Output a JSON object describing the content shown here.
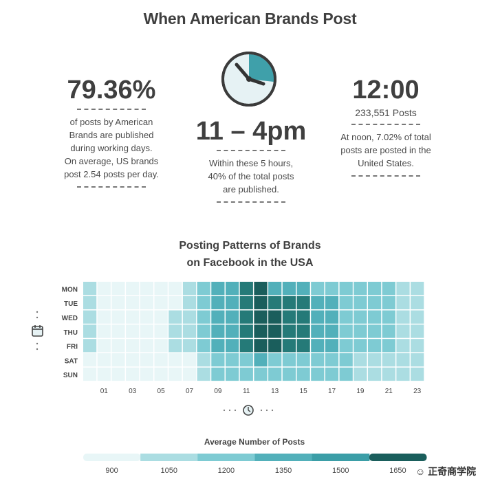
{
  "page": {
    "title": "When American Brands Post",
    "brand": "☺ 正奇商学院"
  },
  "stats": {
    "left": {
      "value": "79.36%",
      "lines": [
        "of posts by American",
        "Brands are published",
        "during working days.",
        "On average, US brands",
        "post 2.54 posts per day."
      ]
    },
    "middle": {
      "value": "11 – 4pm",
      "lines": [
        "Within these 5 hours,",
        "40% of the total posts",
        "are published."
      ]
    },
    "right": {
      "value": "12:00",
      "subtitle": "233,551 Posts",
      "lines": [
        "At noon, 7.02% of total",
        "posts are posted in the",
        "United States."
      ]
    }
  },
  "icons": {
    "clock": "clock-icon",
    "calendar": "calendar-icon",
    "small_clock": "small-clock-icon"
  },
  "colors": {
    "scale": [
      "#e8f6f7",
      "#abdde2",
      "#7ecbd3",
      "#52b0ba",
      "#3b9ea7",
      "#257a78",
      "#1a5e5c"
    ],
    "clock_face": "#e6f2f4",
    "clock_fill": "#3fa0aa"
  },
  "chart_data": {
    "type": "heatmap",
    "title_lines": [
      "Posting Patterns of Brands",
      "on Facebook in the USA"
    ],
    "rows": [
      "MON",
      "TUE",
      "WED",
      "THU",
      "FRI",
      "SAT",
      "SUN"
    ],
    "columns": [
      0,
      1,
      2,
      3,
      4,
      5,
      6,
      7,
      8,
      9,
      10,
      11,
      12,
      13,
      14,
      15,
      16,
      17,
      18,
      19,
      20,
      21,
      22,
      23
    ],
    "x_tick_labels": [
      "01",
      "03",
      "05",
      "07",
      "09",
      "11",
      "13",
      "15",
      "17",
      "19",
      "21",
      "23"
    ],
    "legend_title": "Average Number of Posts",
    "legend_ticks": [
      "900",
      "1050",
      "1200",
      "1350",
      "1500",
      "1650"
    ],
    "values": [
      [
        1120,
        1000,
        960,
        940,
        950,
        960,
        1020,
        1160,
        1270,
        1350,
        1430,
        1600,
        1640,
        1480,
        1400,
        1370,
        1340,
        1330,
        1300,
        1290,
        1280,
        1250,
        1180,
        1140
      ],
      [
        1140,
        1000,
        960,
        940,
        940,
        960,
        1040,
        1170,
        1290,
        1380,
        1470,
        1610,
        1650,
        1620,
        1600,
        1580,
        1420,
        1360,
        1330,
        1300,
        1290,
        1260,
        1190,
        1140
      ],
      [
        1120,
        990,
        960,
        940,
        940,
        960,
        1160,
        1170,
        1300,
        1390,
        1480,
        1610,
        1650,
        1630,
        1610,
        1580,
        1420,
        1360,
        1330,
        1300,
        1290,
        1260,
        1190,
        1140
      ],
      [
        1140,
        990,
        960,
        940,
        940,
        960,
        1050,
        1170,
        1300,
        1400,
        1490,
        1620,
        1650,
        1630,
        1610,
        1590,
        1420,
        1370,
        1340,
        1310,
        1290,
        1260,
        1190,
        1140
      ],
      [
        1140,
        990,
        960,
        940,
        940,
        960,
        1050,
        1170,
        1300,
        1400,
        1490,
        1620,
        1650,
        1630,
        1610,
        1590,
        1410,
        1370,
        1330,
        1300,
        1280,
        1250,
        1190,
        1130
      ],
      [
        960,
        940,
        930,
        920,
        920,
        920,
        930,
        1000,
        1160,
        1220,
        1250,
        1300,
        1360,
        1270,
        1250,
        1240,
        1230,
        1220,
        1200,
        1190,
        1180,
        1170,
        1130,
        1100
      ],
      [
        960,
        940,
        930,
        920,
        920,
        920,
        930,
        990,
        1150,
        1200,
        1230,
        1260,
        1300,
        1250,
        1240,
        1230,
        1220,
        1210,
        1200,
        1190,
        1180,
        1170,
        1140,
        1100
      ]
    ],
    "color_thresholds": [
      1050,
      1200,
      1350,
      1500,
      1650
    ]
  }
}
